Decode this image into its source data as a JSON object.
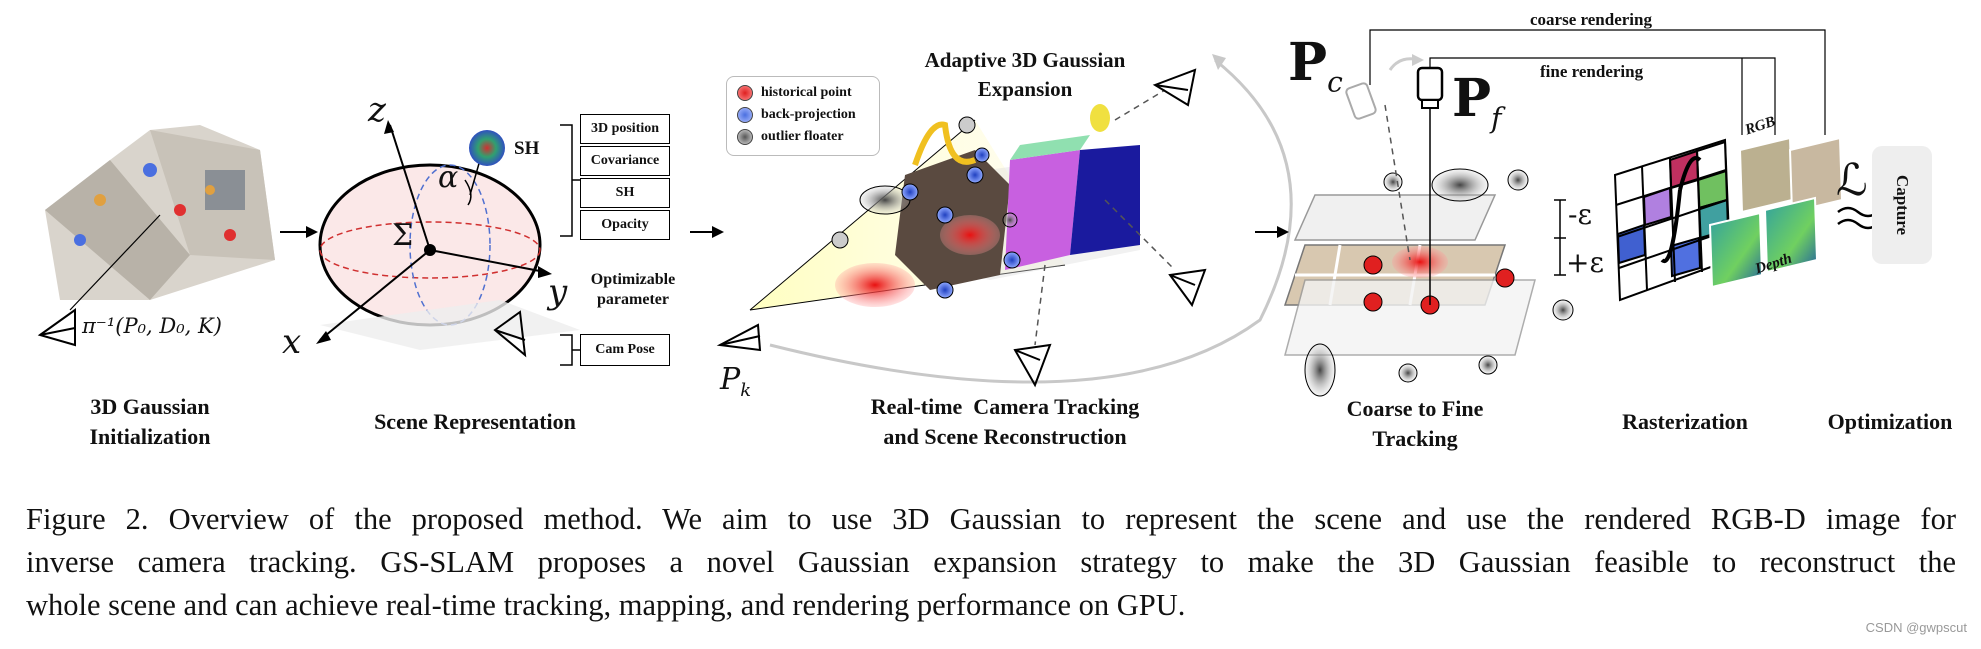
{
  "stages": {
    "init": "3D Gaussian Initialization",
    "init_line1": "3D Gaussian",
    "init_line2": "Initialization",
    "scene": "Scene Representation",
    "tracking_line1": "Real-time  Camera Tracking",
    "tracking_line2": "and Scene Reconstruction",
    "coarse_line1": "Coarse to Fine",
    "coarse_line2": "Tracking",
    "raster": "Rasterization",
    "optim": "Optimization"
  },
  "init_formula": "π⁻¹(P₀, D₀, K)",
  "axes": {
    "z": "z",
    "y": "y",
    "x": "x",
    "alpha": "α",
    "sigma": "Σ"
  },
  "sh_label": "SH",
  "params": [
    "3D position",
    "Covariance",
    "SH",
    "Opacity"
  ],
  "optimizable_line1": "Optimizable",
  "optimizable_line2": "parameter",
  "cam_pose": "Cam Pose",
  "legend": [
    {
      "label": "historical point",
      "color": "#e02020"
    },
    {
      "label": "back-projection",
      "color": "#4a6fe0"
    },
    {
      "label": "outlier floater",
      "color": "#777777"
    }
  ],
  "expansion_line1": "Adaptive 3D Gaussian",
  "expansion_line2": "Expansion",
  "pk": "Pk",
  "pc": "P",
  "pc_sub": "c",
  "pf": "P",
  "pf_sub": "f",
  "coarse_rendering": "coarse rendering",
  "fine_rendering": "fine rendering",
  "neg_eps": "-ε",
  "pos_eps": "+ε",
  "rgb": "RGB",
  "depth": "Depth",
  "loss": "ℒ",
  "capture": "Capture",
  "caption": [
    "Figure 2. Overview of the proposed method. We aim to use 3D Gaussian to represent the scene and use the rendered RGB-D image for",
    "inverse camera tracking. GS-SLAM proposes a novel Gaussian expansion strategy to make the 3D Gaussian feasible to reconstruct the",
    "whole scene and can achieve real-time tracking, mapping, and rendering performance on GPU."
  ],
  "watermark": "CSDN @gwpscut"
}
